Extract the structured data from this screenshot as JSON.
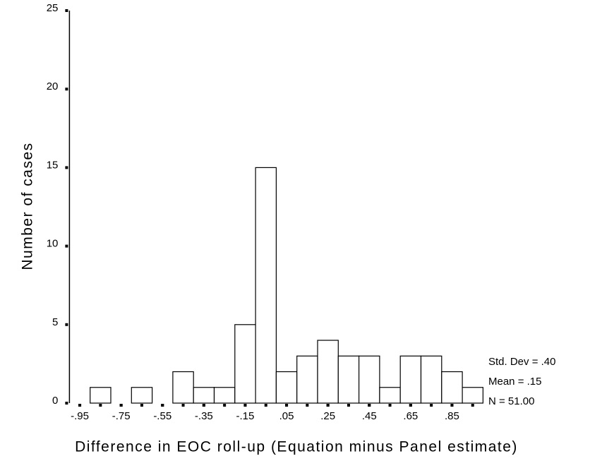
{
  "chart_data": {
    "type": "histogram",
    "xlabel": "Difference in EOC roll-up (Equation minus Panel estimate)",
    "ylabel": "Number of cases",
    "bins": [
      -1.0,
      -0.9,
      -0.8,
      -0.7,
      -0.6,
      -0.5,
      -0.4,
      -0.3,
      -0.2,
      -0.1,
      0.0,
      0.1,
      0.2,
      0.3,
      0.4,
      0.5,
      0.6,
      0.7,
      0.8,
      0.9,
      1.0
    ],
    "values": [
      0,
      1,
      0,
      1,
      0,
      2,
      1,
      1,
      5,
      15,
      2,
      3,
      4,
      3,
      3,
      1,
      3,
      3,
      2,
      1
    ],
    "color": "#ffffff",
    "xlim": [
      -1.0,
      1.0
    ],
    "xticks": [
      {
        "value": -0.95,
        "label": "-.95"
      },
      {
        "value": -0.75,
        "label": "-.75"
      },
      {
        "value": -0.55,
        "label": "-.55"
      },
      {
        "value": -0.35,
        "label": "-.35"
      },
      {
        "value": -0.15,
        "label": "-.15"
      },
      {
        "value": 0.05,
        "label": ".05"
      },
      {
        "value": 0.25,
        "label": ".25"
      },
      {
        "value": 0.45,
        "label": ".45"
      },
      {
        "value": 0.65,
        "label": ".65"
      },
      {
        "value": 0.85,
        "label": ".85"
      }
    ],
    "ylim": [
      0,
      25
    ],
    "yticks": [
      0,
      5,
      10,
      15,
      20,
      25
    ],
    "stats": [
      "Std. Dev = .40",
      "Mean = .15",
      "N = 51.00"
    ]
  }
}
